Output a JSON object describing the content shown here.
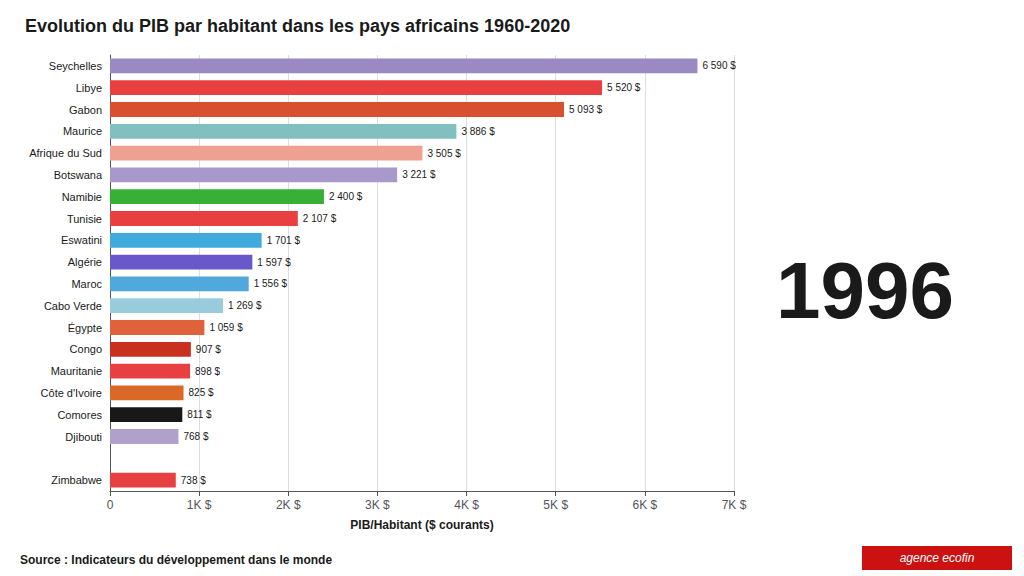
{
  "chart_data": {
    "type": "bar",
    "orientation": "horizontal",
    "title": "Evolution du PIB par habitant dans les pays africains 1960-2020",
    "xlabel": "PIB/Habitant ($ courants)",
    "categories": [
      "Seychelles",
      "Libye",
      "Gabon",
      "Maurice",
      "Afrique du Sud",
      "Botswana",
      "Namibie",
      "Tunisie",
      "Eswatini",
      "Algérie",
      "Maroc",
      "Cabo Verde",
      "Égypte",
      "Congo",
      "Mauritanie",
      "Côte d'Ivoire",
      "Comores",
      "Djibouti",
      null,
      "Zimbabwe"
    ],
    "values": [
      6590,
      5520,
      5093,
      3886,
      3505,
      3221,
      2400,
      2107,
      1701,
      1597,
      1556,
      1269,
      1059,
      907,
      898,
      825,
      811,
      768,
      0,
      738
    ],
    "value_labels": [
      "6 590 $",
      "5 520 $",
      "5 093 $",
      "3 886 $",
      "3 505 $",
      "3 221 $",
      "2 400 $",
      "2 107 $",
      "1 701 $",
      "1 597 $",
      "1 556 $",
      "1 269 $",
      "1 059 $",
      "907 $",
      "898 $",
      "825 $",
      "811 $",
      "768 $",
      null,
      "738 $"
    ],
    "colors": [
      "#9B89C4",
      "#E84040",
      "#D95030",
      "#82BFBF",
      "#EFA090",
      "#A898CC",
      "#38B038",
      "#E84040",
      "#40AADC",
      "#6858CC",
      "#50A8DC",
      "#98CCDC",
      "#E0623A",
      "#C83020",
      "#E84040",
      "#DC6828",
      "#181818",
      "#B0A0CC",
      "#D4A843",
      "#E84040"
    ],
    "data_labels": true,
    "xlim": [
      0,
      7000
    ],
    "xticks": [
      0,
      {
        "value": 1000,
        "label": "1K $"
      },
      {
        "value": 2000,
        "label": "2K $"
      },
      {
        "value": 3000,
        "label": "3K $"
      },
      {
        "value": 4000,
        "label": "4K $"
      },
      {
        "value": 5000,
        "label": "5K $"
      },
      {
        "value": 6000,
        "label": "6K $"
      },
      {
        "value": 7000,
        "label": "7K $"
      }
    ],
    "grid": true,
    "annotations": [
      "1996",
      "Source : Indicateurs du développement dans le monde",
      "agence ecofin"
    ]
  }
}
